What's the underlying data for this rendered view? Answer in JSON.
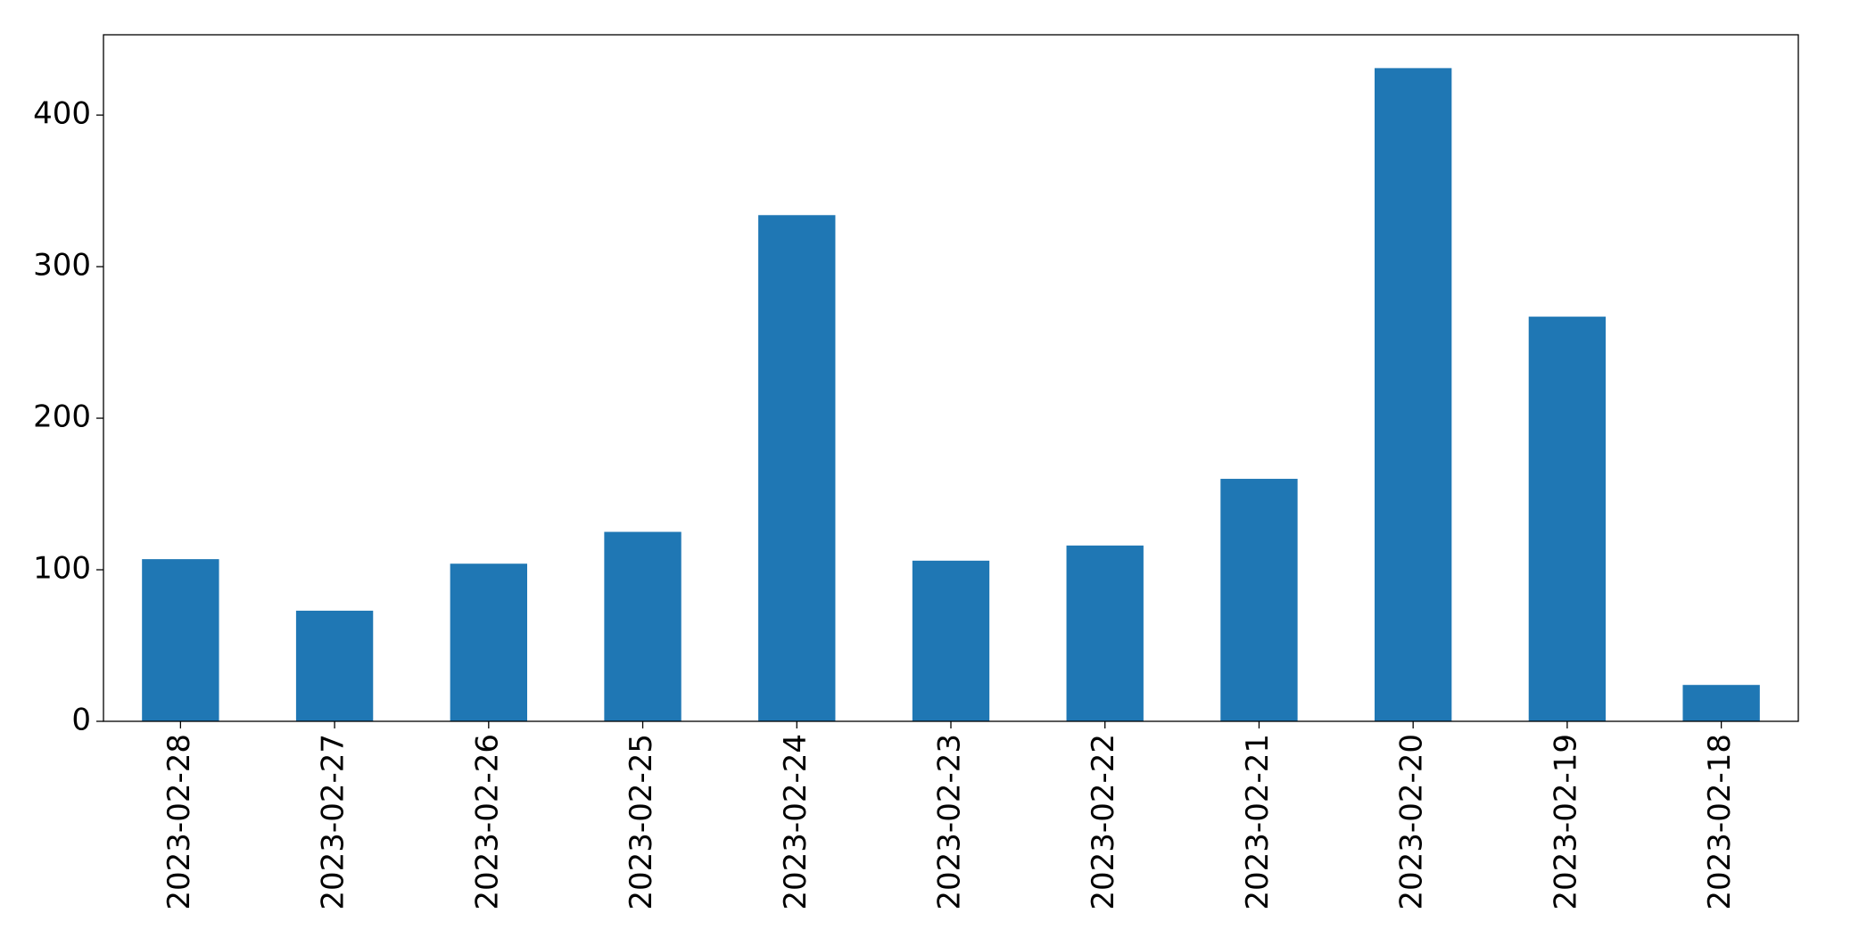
{
  "chart_data": {
    "type": "bar",
    "categories": [
      "2023-02-28",
      "2023-02-27",
      "2023-02-26",
      "2023-02-25",
      "2023-02-24",
      "2023-02-23",
      "2023-02-22",
      "2023-02-21",
      "2023-02-20",
      "2023-02-19",
      "2023-02-18"
    ],
    "values": [
      107,
      73,
      104,
      125,
      334,
      106,
      116,
      160,
      431,
      267,
      24
    ],
    "color": "#1f77b4",
    "ylim": [
      0,
      453
    ],
    "yticks": [
      0,
      100,
      200,
      300,
      400
    ],
    "grid": false
  }
}
